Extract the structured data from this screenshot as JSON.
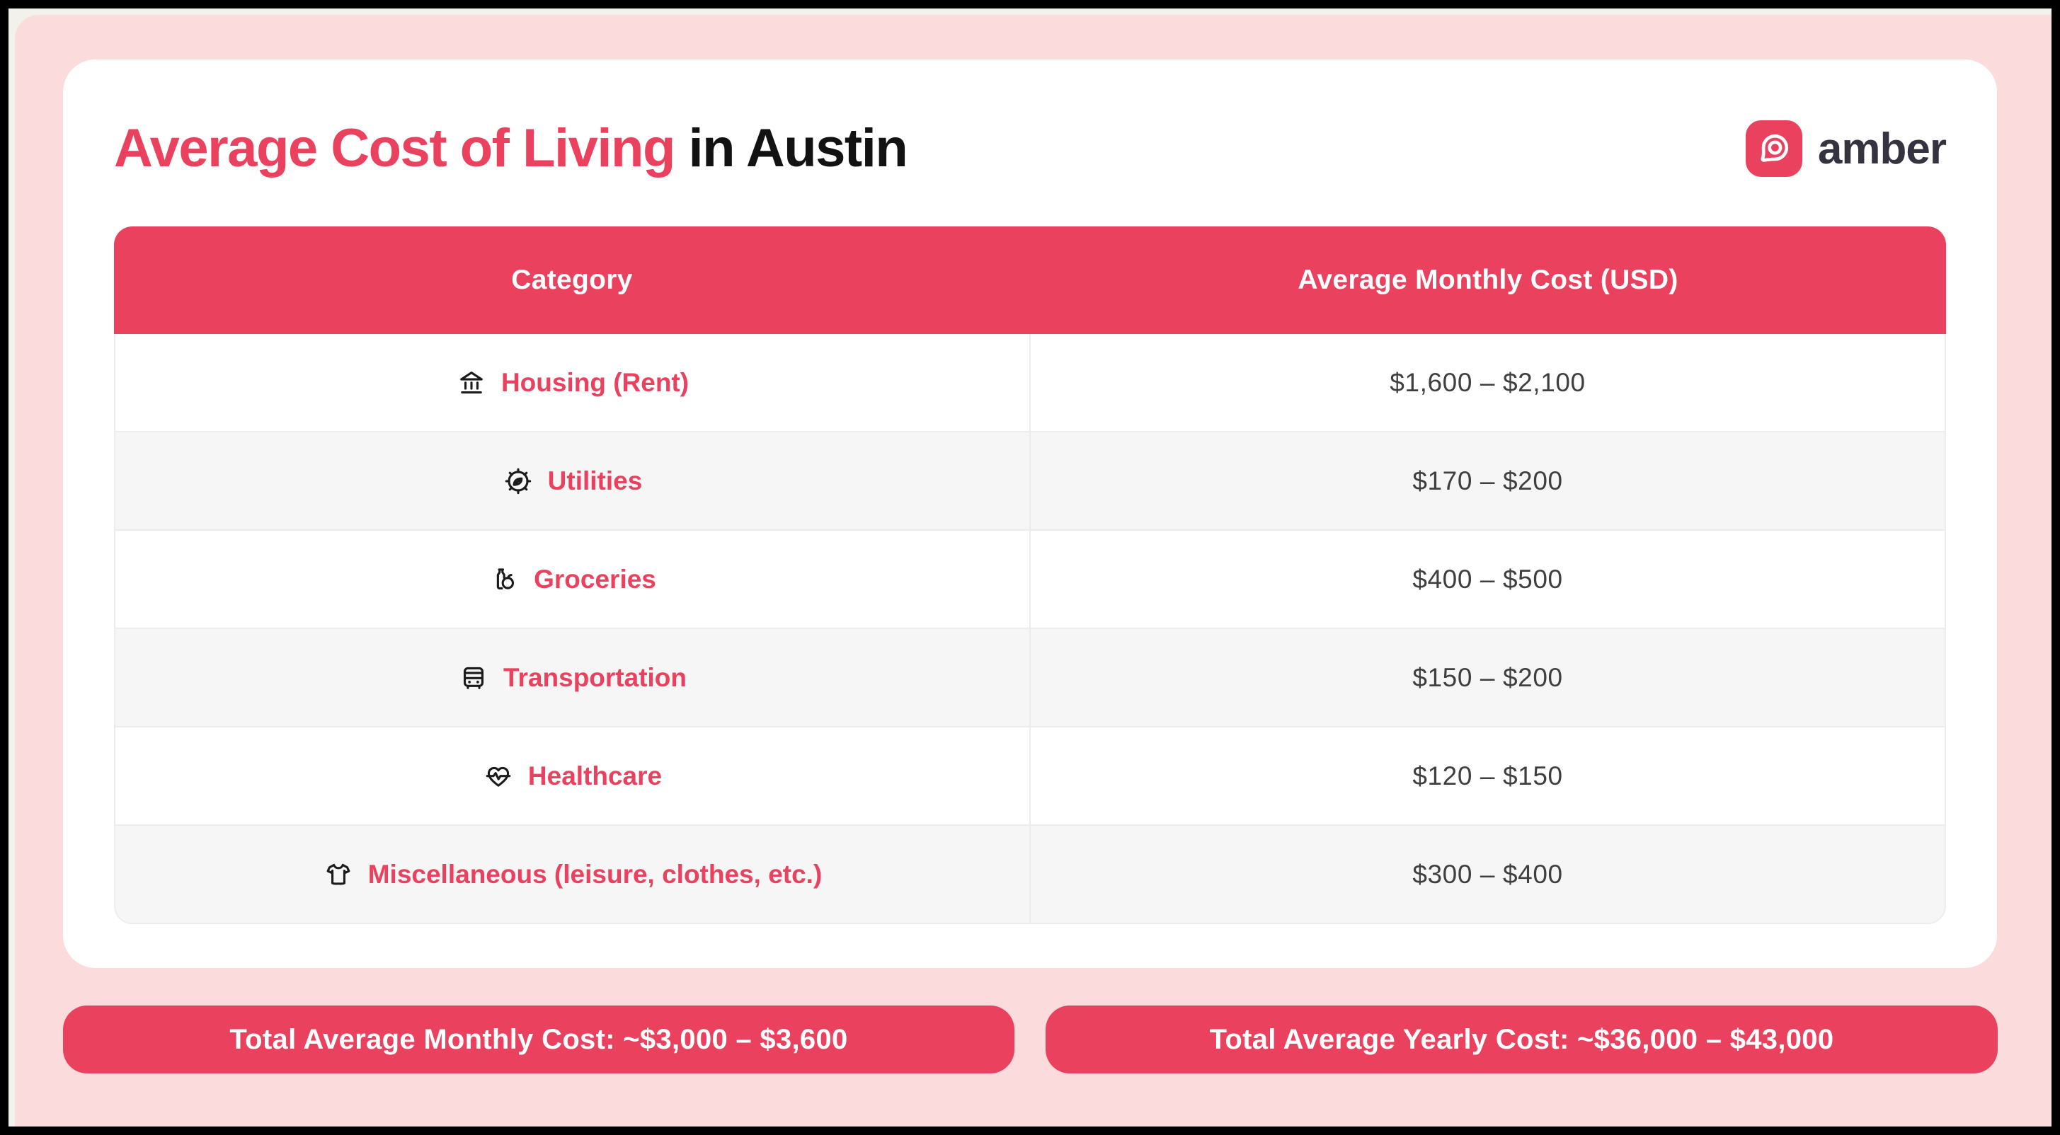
{
  "header": {
    "title_highlight": "Average Cost of Living",
    "title_rest": " in Austin",
    "brand_name": "amber",
    "brand_icon": "amber-logo-icon"
  },
  "colors": {
    "accent_red": "#EA415E",
    "light_pink_background": "#FBDBDC",
    "alt_row_background": "#F6F6F7",
    "value_text": "#3F3F3F",
    "icon_black": "#1B1B1B"
  },
  "table": {
    "columns": [
      "Category",
      "Average Monthly Cost (USD)"
    ],
    "rows": [
      {
        "icon": "bank-icon",
        "label": "Housing (Rent)",
        "value": "$1,600 – $2,100"
      },
      {
        "icon": "eco-gear-icon",
        "label": "Utilities",
        "value": "$170 – $200"
      },
      {
        "icon": "groceries-icon",
        "label": "Groceries",
        "value": "$400 – $500"
      },
      {
        "icon": "bus-icon",
        "label": "Transportation",
        "value": "$150 – $200"
      },
      {
        "icon": "heart-pulse-icon",
        "label": "Healthcare",
        "value": "$120 – $150"
      },
      {
        "icon": "tshirt-icon",
        "label": "Miscellaneous (leisure, clothes, etc.)",
        "value": "$300 – $400"
      }
    ]
  },
  "summary": {
    "monthly": "Total Average Monthly Cost: ~$3,000 – $3,600",
    "yearly": "Total Average Yearly Cost: ~$36,000 – $43,000"
  }
}
